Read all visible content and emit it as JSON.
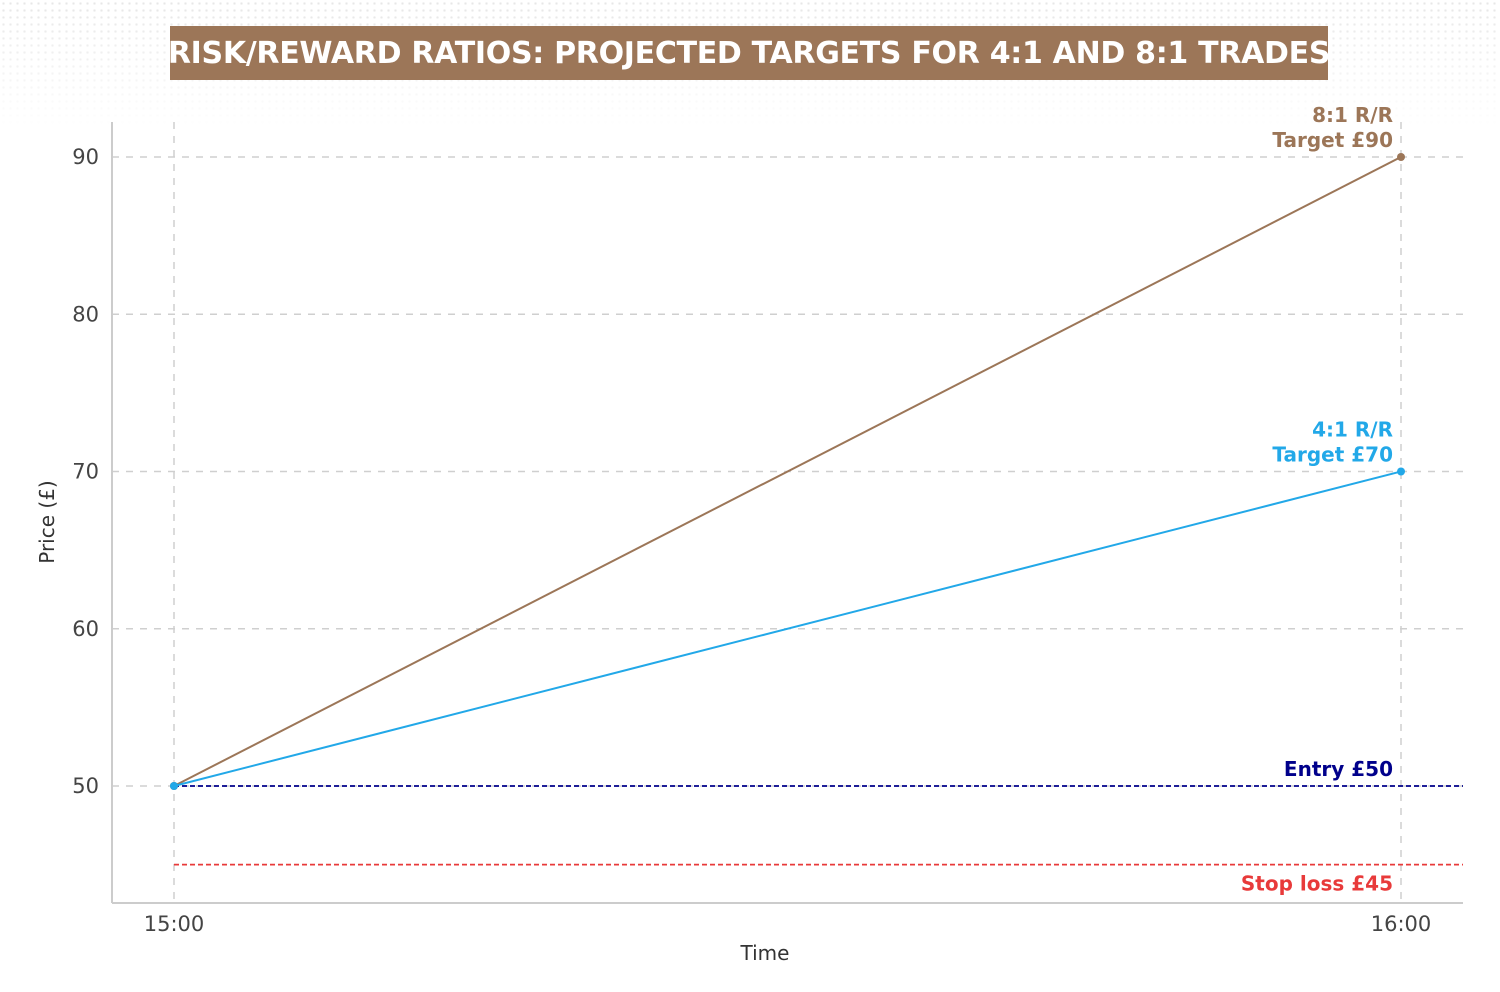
{
  "chart_data": {
    "type": "line",
    "title": "RISK/REWARD RATIOS: PROJECTED TARGETS FOR 4:1 AND 8:1 TRADES",
    "xlabel": "Time",
    "ylabel": "Price (£)",
    "x": [
      "15:00",
      "16:00"
    ],
    "ylim": [
      44,
      92
    ],
    "yticks": [
      50,
      60,
      70,
      80,
      90
    ],
    "grid": true,
    "series": [
      {
        "values": [
          50,
          90
        ],
        "color": "#9c7658"
      },
      {
        "values": [
          50,
          70
        ],
        "color": "#22a8e8"
      }
    ],
    "reference_lines": [
      {
        "value": 50,
        "color": "#00008b"
      },
      {
        "value": 45,
        "color": "#e83a3a"
      }
    ],
    "annotations": [
      {
        "lines": [
          "8:1 R/R",
          "Target £90"
        ],
        "x": "16:00",
        "y": 90,
        "color": "#9c7658"
      },
      {
        "lines": [
          "4:1 R/R",
          "Target £70"
        ],
        "x": "16:00",
        "y": 70,
        "color": "#22a8e8"
      },
      {
        "lines": [
          "Entry £50"
        ],
        "x": "16:00",
        "y": 50,
        "color": "#00008b"
      },
      {
        "lines": [
          "Stop loss £45"
        ],
        "x": "16:00",
        "y": 45,
        "color": "#e83a3a"
      }
    ]
  }
}
